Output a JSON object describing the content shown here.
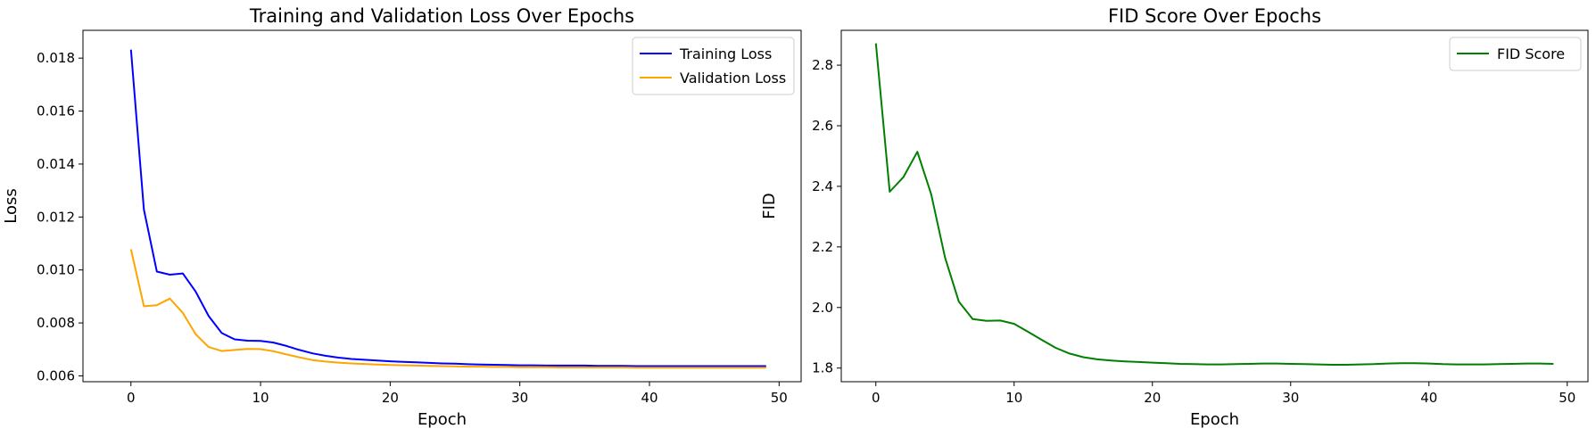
{
  "chart_data": [
    {
      "type": "line",
      "title": "Training and Validation Loss Over Epochs",
      "xlabel": "Epoch",
      "ylabel": "Loss",
      "xlim": [
        -3.7,
        51.7
      ],
      "ylim": [
        0.00578,
        0.01905
      ],
      "xticks": [
        0,
        10,
        20,
        30,
        40,
        50
      ],
      "yticks": [
        0.006,
        0.008,
        0.01,
        0.012,
        0.014,
        0.016,
        0.018
      ],
      "ytick_labels": [
        "0.006",
        "0.008",
        "0.010",
        "0.012",
        "0.014",
        "0.016",
        "0.018"
      ],
      "legend_position": "top-right",
      "grid": false,
      "x": [
        0,
        1,
        2,
        3,
        4,
        5,
        6,
        7,
        8,
        9,
        10,
        11,
        12,
        13,
        14,
        15,
        16,
        17,
        18,
        19,
        20,
        21,
        22,
        23,
        24,
        25,
        26,
        27,
        28,
        29,
        30,
        31,
        32,
        33,
        34,
        35,
        36,
        37,
        38,
        39,
        40,
        41,
        42,
        43,
        44,
        45,
        46,
        47,
        48,
        49
      ],
      "series": [
        {
          "name": "Training Loss",
          "color": "#0000ff",
          "values": [
            0.01832,
            0.01228,
            0.00994,
            0.00982,
            0.00987,
            0.00918,
            0.00826,
            0.00762,
            0.00738,
            0.00733,
            0.00732,
            0.00726,
            0.00713,
            0.00698,
            0.00685,
            0.00676,
            0.00669,
            0.00664,
            0.00661,
            0.00658,
            0.00655,
            0.00653,
            0.00651,
            0.00649,
            0.00647,
            0.00646,
            0.00644,
            0.00643,
            0.00642,
            0.00641,
            0.0064,
            0.0064,
            0.00639,
            0.00639,
            0.00639,
            0.00639,
            0.00638,
            0.00638,
            0.00638,
            0.00637,
            0.00637,
            0.00637,
            0.00637,
            0.00637,
            0.00637,
            0.00637,
            0.00637,
            0.00637,
            0.00637,
            0.00637
          ]
        },
        {
          "name": "Validation Loss",
          "color": "#ffa500",
          "values": [
            0.01078,
            0.00863,
            0.00867,
            0.00892,
            0.00838,
            0.00757,
            0.00709,
            0.00694,
            0.00698,
            0.00702,
            0.00701,
            0.00693,
            0.00681,
            0.0067,
            0.0066,
            0.00654,
            0.0065,
            0.00647,
            0.00645,
            0.00643,
            0.00641,
            0.0064,
            0.00639,
            0.00638,
            0.00637,
            0.00636,
            0.00635,
            0.00635,
            0.00634,
            0.00634,
            0.00633,
            0.00633,
            0.00633,
            0.00632,
            0.00632,
            0.00632,
            0.00632,
            0.00632,
            0.00632,
            0.00631,
            0.00631,
            0.00631,
            0.00631,
            0.00631,
            0.00631,
            0.00631,
            0.00631,
            0.00631,
            0.00631,
            0.00631
          ]
        }
      ]
    },
    {
      "type": "line",
      "title": "FID Score Over Epochs",
      "xlabel": "Epoch",
      "ylabel": "FID",
      "xlim": [
        -2.5,
        51.5
      ],
      "ylim": [
        1.755,
        2.915
      ],
      "xticks": [
        0,
        10,
        20,
        30,
        40,
        50
      ],
      "yticks": [
        1.8,
        2.0,
        2.2,
        2.4,
        2.6,
        2.8
      ],
      "ytick_labels": [
        "1.8",
        "2.0",
        "2.2",
        "2.4",
        "2.6",
        "2.8"
      ],
      "legend_position": "top-right",
      "grid": false,
      "x": [
        0,
        1,
        2,
        3,
        4,
        5,
        6,
        7,
        8,
        9,
        10,
        11,
        12,
        13,
        14,
        15,
        16,
        17,
        18,
        19,
        20,
        21,
        22,
        23,
        24,
        25,
        26,
        27,
        28,
        29,
        30,
        31,
        32,
        33,
        34,
        35,
        36,
        37,
        38,
        39,
        40,
        41,
        42,
        43,
        44,
        45,
        46,
        47,
        48,
        49
      ],
      "series": [
        {
          "name": "FID Score",
          "color": "#008000",
          "values": [
            2.872,
            2.382,
            2.431,
            2.514,
            2.374,
            2.165,
            2.019,
            1.962,
            1.956,
            1.957,
            1.946,
            1.92,
            1.893,
            1.867,
            1.848,
            1.836,
            1.829,
            1.825,
            1.822,
            1.82,
            1.818,
            1.816,
            1.814,
            1.813,
            1.812,
            1.812,
            1.813,
            1.814,
            1.815,
            1.815,
            1.814,
            1.813,
            1.812,
            1.811,
            1.811,
            1.812,
            1.813,
            1.815,
            1.816,
            1.816,
            1.815,
            1.813,
            1.812,
            1.812,
            1.812,
            1.813,
            1.814,
            1.815,
            1.815,
            1.814
          ]
        }
      ]
    }
  ]
}
